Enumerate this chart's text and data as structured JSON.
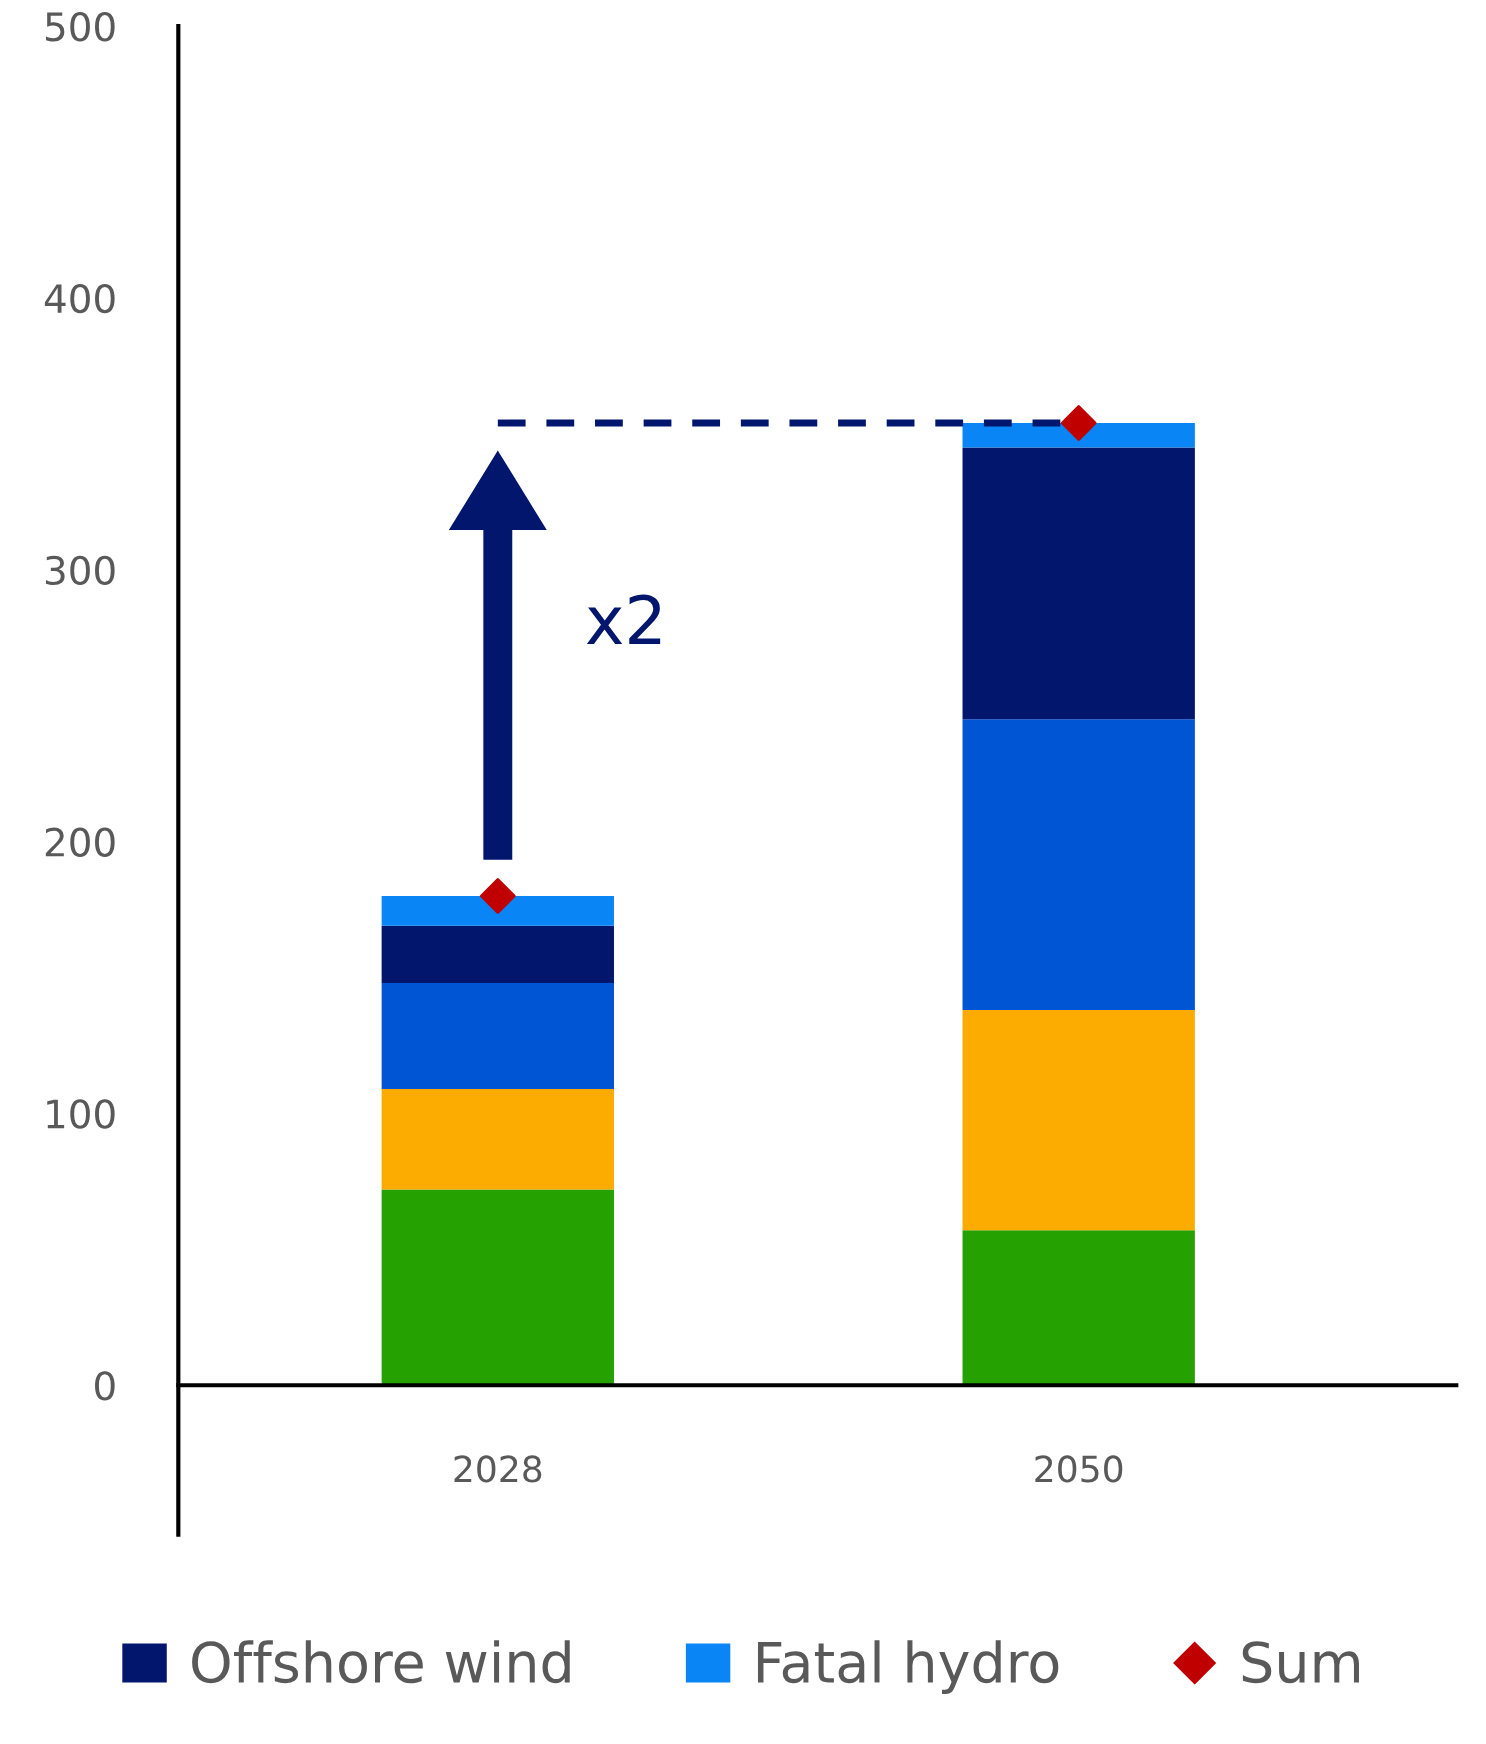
{
  "chart_data": {
    "type": "bar",
    "stacked": true,
    "categories": [
      "2028",
      "2050"
    ],
    "series": [
      {
        "color": "#26a102",
        "values": [
          72,
          57
        ]
      },
      {
        "color": "#fcac00",
        "values": [
          37,
          81
        ]
      },
      {
        "color": "#0055d4",
        "values": [
          39,
          107
        ]
      },
      {
        "name": "Offshore wind",
        "color": "#02166e",
        "values": [
          21,
          100
        ]
      },
      {
        "name": "Fatal hydro",
        "color": "#0a85f5",
        "values": [
          11,
          9
        ]
      },
      {
        "name": "Sum",
        "type": "scatter",
        "marker": "diamond",
        "color": "#c00000",
        "values": [
          180,
          354
        ]
      }
    ],
    "ref_lines": [
      {
        "axis": "y",
        "value": 354,
        "color": "#02166e",
        "line_style": "dashed"
      }
    ],
    "annotations": [
      "x2"
    ],
    "ylim": [
      -55,
      500
    ],
    "yticks": [
      0,
      100,
      200,
      300,
      400,
      500
    ],
    "grid": false,
    "legend": "bottom"
  }
}
